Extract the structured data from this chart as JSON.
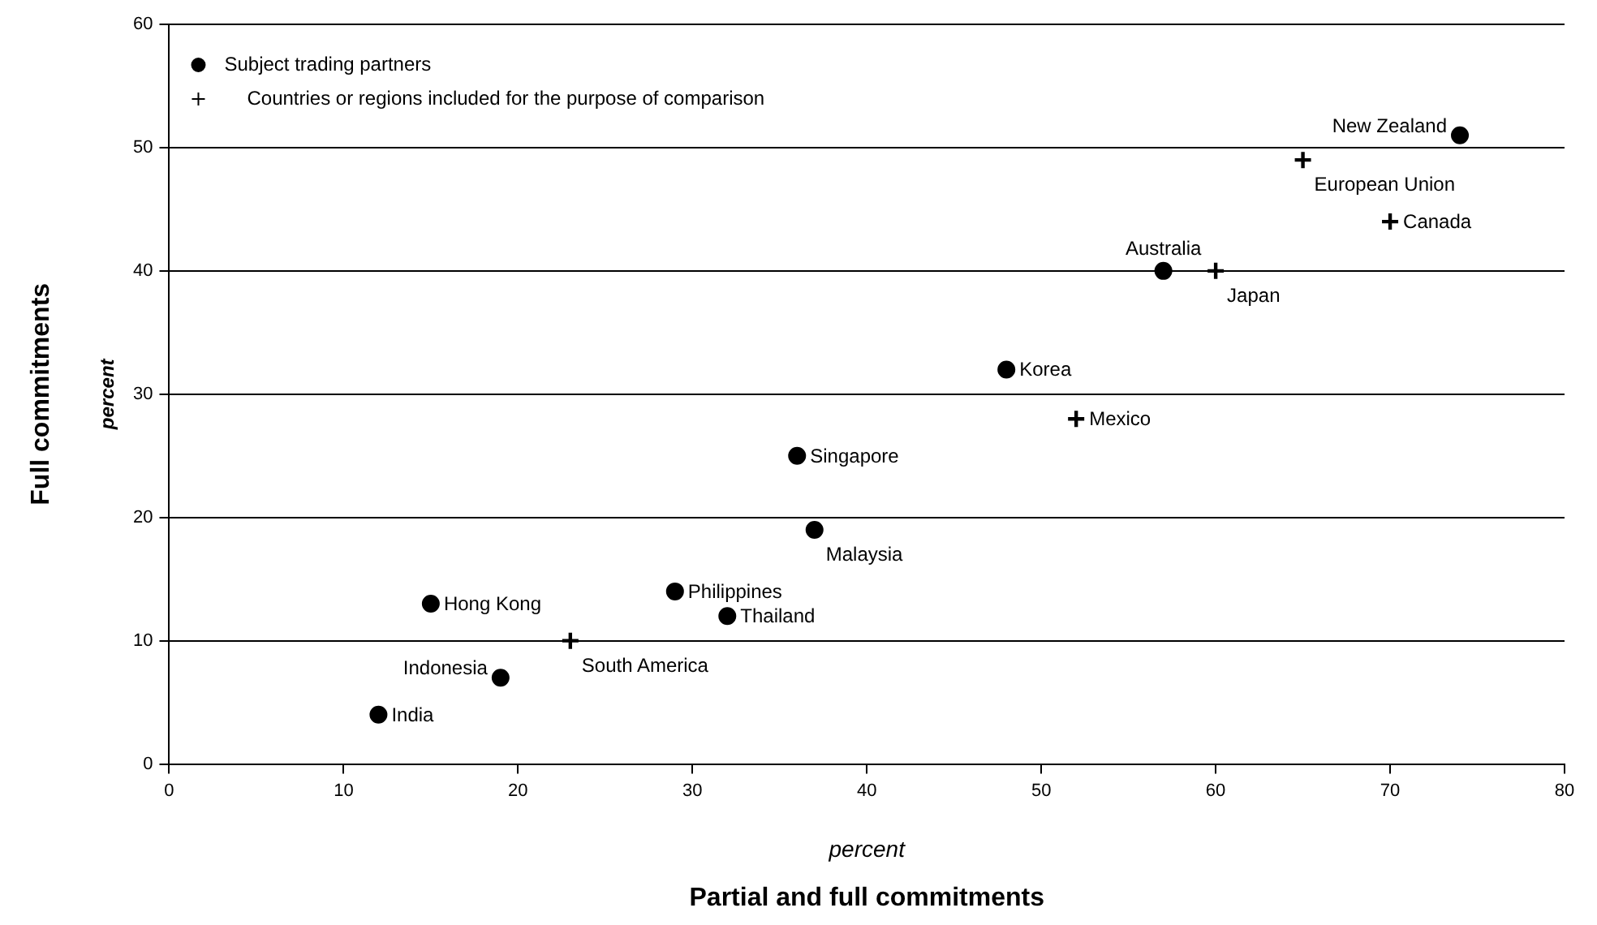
{
  "chart_data": {
    "type": "scatter",
    "xlabel": "Partial and full commitments",
    "ylabel": "Full commitments",
    "annotations": [
      "percent",
      "percent",
      {
        "text": "New Zealand",
        "x": 74,
        "y": 51
      },
      {
        "text": "European Union",
        "x": 65,
        "y": 49
      },
      {
        "text": "Canada",
        "x": 70,
        "y": 44
      },
      {
        "text": "Australia",
        "x": 57,
        "y": 40
      },
      {
        "text": "Japan",
        "x": 60,
        "y": 40
      },
      {
        "text": "Korea",
        "x": 48,
        "y": 32
      },
      {
        "text": "Mexico",
        "x": 52,
        "y": 28
      },
      {
        "text": "Singapore",
        "x": 36,
        "y": 25
      },
      {
        "text": "Malaysia",
        "x": 37,
        "y": 19
      },
      {
        "text": "Philippines",
        "x": 29,
        "y": 14
      },
      {
        "text": "Hong Kong",
        "x": 15,
        "y": 13
      },
      {
        "text": "Thailand",
        "x": 32,
        "y": 12
      },
      {
        "text": "South America",
        "x": 23,
        "y": 10
      },
      {
        "text": "Indonesia",
        "x": 19,
        "y": 7
      },
      {
        "text": "India",
        "x": 12,
        "y": 4
      }
    ],
    "series": [
      {
        "name": "Subject trading partners",
        "color": "#000000",
        "marker": "circle",
        "x": [
          74,
          57,
          48,
          36,
          37,
          29,
          15,
          32,
          19,
          12
        ],
        "values": [
          51,
          40,
          32,
          25,
          19,
          14,
          13,
          12,
          7,
          4
        ]
      },
      {
        "name": "Countries or regions included for the purpose of comparison",
        "color": "#000000",
        "marker": "cross",
        "x": [
          65,
          70,
          60,
          52,
          23
        ],
        "values": [
          49,
          44,
          40,
          28,
          10
        ]
      }
    ],
    "xlim": [
      0,
      80
    ],
    "xticks": [
      0,
      10,
      20,
      30,
      40,
      50,
      60,
      70,
      80
    ],
    "ylim": [
      0,
      60
    ],
    "yticks": [
      0,
      10,
      20,
      30,
      40,
      50,
      60
    ],
    "grid": "y",
    "legend": "top left"
  }
}
